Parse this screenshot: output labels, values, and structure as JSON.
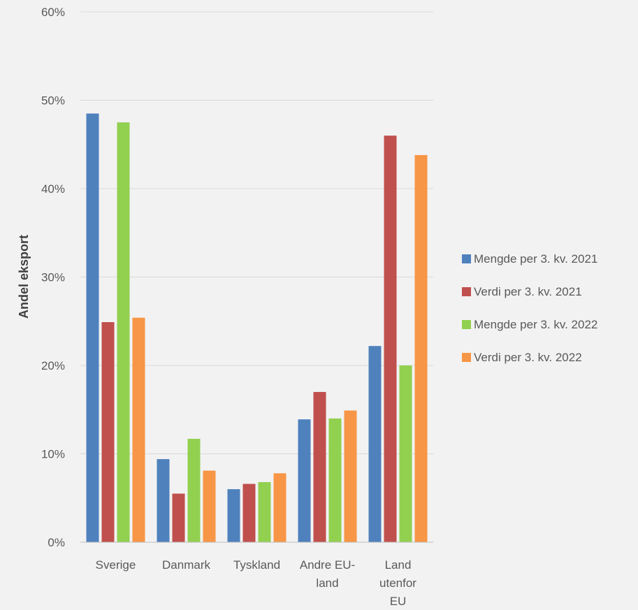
{
  "chart_data": {
    "type": "bar",
    "ylabel": "Andel eksport",
    "xlabel": "",
    "title": "",
    "ylim": [
      0,
      60
    ],
    "y_ticks": [
      0,
      10,
      20,
      30,
      40,
      50,
      60
    ],
    "y_tick_labels": [
      "0%",
      "10%",
      "20%",
      "30%",
      "40%",
      "50%",
      "60%"
    ],
    "y_unit": "%",
    "grid": true,
    "legend_position": "right",
    "categories": [
      "Sverige",
      "Danmark",
      "Tyskland",
      "Andre EU-land",
      "Land utenfor EU"
    ],
    "category_label_lines": [
      [
        "Sverige"
      ],
      [
        "Danmark"
      ],
      [
        "Tyskland"
      ],
      [
        "Andre EU-",
        "land"
      ],
      [
        "Land",
        "utenfor",
        "EU"
      ]
    ],
    "series": [
      {
        "name": "Mengde per 3. kv. 2021",
        "color": "#4f81bd",
        "values": [
          48.5,
          9.4,
          6.0,
          13.9,
          22.2
        ]
      },
      {
        "name": "Verdi per 3. kv. 2021",
        "color": "#c0504d",
        "values": [
          24.9,
          5.5,
          6.6,
          17.0,
          46.0
        ]
      },
      {
        "name": "Mengde per 3. kv. 2022",
        "color": "#92d050",
        "values": [
          47.5,
          11.7,
          6.8,
          14.0,
          20.0
        ]
      },
      {
        "name": "Verdi per 3. kv. 2022",
        "color": "#f79646",
        "values": [
          25.4,
          8.1,
          7.8,
          14.9,
          43.8
        ]
      }
    ]
  }
}
